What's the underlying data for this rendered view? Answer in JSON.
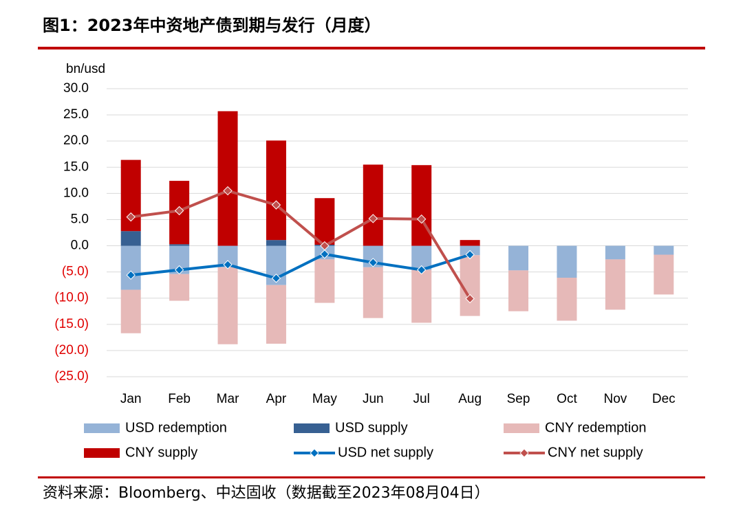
{
  "chart_data": {
    "type": "bar",
    "title": "图1：2023年中资地产债到期与发行（月度）",
    "y_label": "bn/usd",
    "source": "资料来源：Bloomberg、中达固收（数据截至2023年08月04日）",
    "categories": [
      "Jan",
      "Feb",
      "Mar",
      "Apr",
      "May",
      "Jun",
      "Jul",
      "Aug",
      "Sep",
      "Oct",
      "Nov",
      "Dec"
    ],
    "ylim": [
      -25,
      30
    ],
    "yticks": [
      {
        "value": 30,
        "label": "30.0"
      },
      {
        "value": 25,
        "label": "25.0"
      },
      {
        "value": 20,
        "label": "20.0"
      },
      {
        "value": 15,
        "label": "15.0"
      },
      {
        "value": 10,
        "label": "10.0"
      },
      {
        "value": 5,
        "label": "5.0"
      },
      {
        "value": 0,
        "label": "0.0"
      },
      {
        "value": -5,
        "label": "(5.0)"
      },
      {
        "value": -10,
        "label": "(10.0)"
      },
      {
        "value": -15,
        "label": "(15.0)"
      },
      {
        "value": -20,
        "label": "(20.0)"
      },
      {
        "value": -25,
        "label": "(25.0)"
      }
    ],
    "grid": true,
    "series": [
      {
        "name": "USD redemption",
        "type": "bar",
        "color": "#95b3d7",
        "values": [
          -8.4,
          -5.4,
          -4.1,
          -7.5,
          -2.6,
          -4.1,
          -4.6,
          -1.8,
          -4.7,
          -6.1,
          -2.6,
          -1.7
        ]
      },
      {
        "name": "USD supply",
        "type": "bar",
        "color": "#376092",
        "values": [
          2.8,
          0.3,
          0,
          1.1,
          0.2,
          0,
          0,
          0,
          0,
          0,
          0,
          0
        ]
      },
      {
        "name": "CNY redemption",
        "type": "bar",
        "color": "#e6b9b8",
        "values": [
          -8.3,
          -5.1,
          -14.7,
          -11.2,
          -8.3,
          -9.7,
          -10.1,
          -11.6,
          -7.8,
          -8.2,
          -9.6,
          -7.6
        ]
      },
      {
        "name": "CNY supply",
        "type": "bar",
        "color": "#c00000",
        "values": [
          13.6,
          12.1,
          25.7,
          19.0,
          8.9,
          15.5,
          15.4,
          1.1,
          0,
          0,
          0,
          0
        ]
      },
      {
        "name": "USD net supply",
        "type": "line",
        "color": "#0070c0",
        "values": [
          -5.6,
          -4.6,
          -3.6,
          -6.2,
          -1.6,
          -3.2,
          -4.6,
          -1.7,
          null,
          null,
          null,
          null
        ]
      },
      {
        "name": "CNY net supply",
        "type": "line",
        "color": "#c0504d",
        "values": [
          5.5,
          6.7,
          10.5,
          7.8,
          0,
          5.2,
          5.1,
          -10.1,
          null,
          null,
          null,
          null
        ]
      }
    ]
  }
}
